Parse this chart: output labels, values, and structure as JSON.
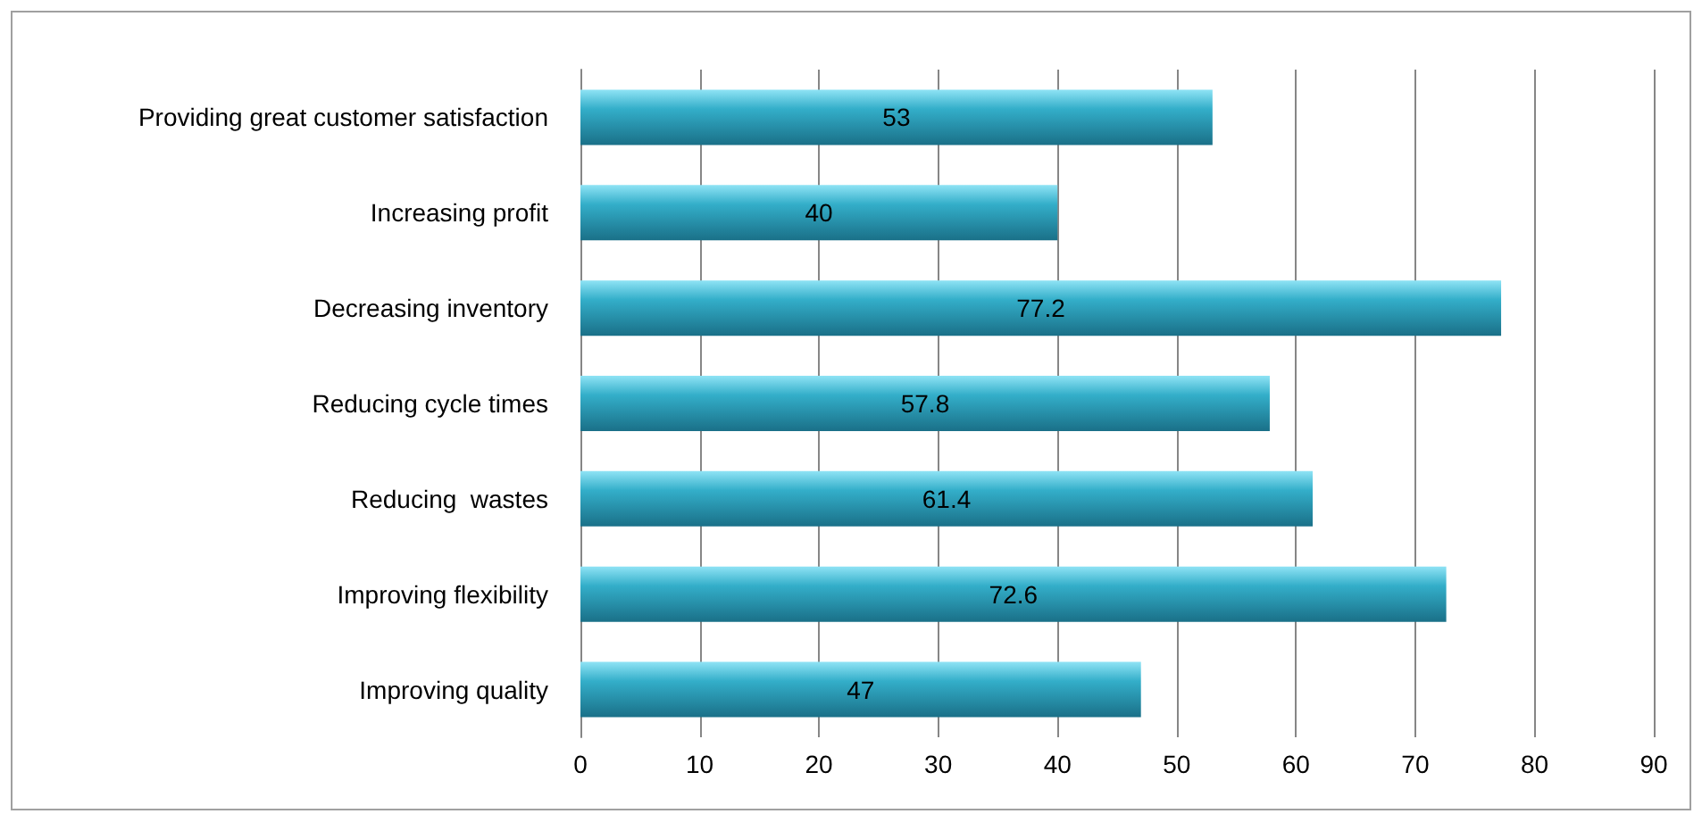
{
  "chart_data": {
    "type": "bar",
    "orientation": "horizontal",
    "categories": [
      "Providing great customer satisfaction",
      "Increasing profit",
      "Decreasing inventory",
      "Reducing cycle times",
      "Reducing  wastes",
      "Improving flexibility",
      "Improving quality"
    ],
    "values": [
      53,
      40,
      77.2,
      57.8,
      61.4,
      72.6,
      47
    ],
    "color": "#33aec9",
    "xlim": [
      0,
      90
    ],
    "xticks": [
      0,
      10,
      20,
      30,
      40,
      50,
      60,
      70,
      80,
      90
    ],
    "grid": "x",
    "data_labels": true
  }
}
